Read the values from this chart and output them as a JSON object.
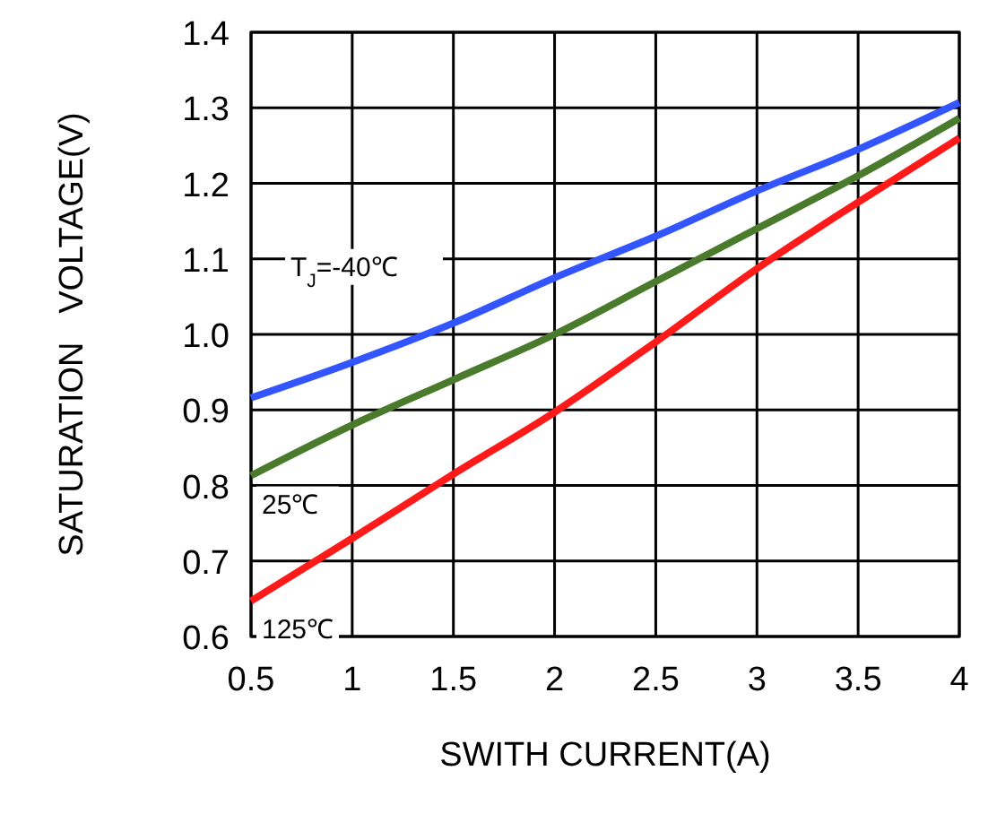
{
  "chart_data": {
    "type": "line",
    "xlabel": "SWITH CURRENT(A)",
    "ylabel": "SATURATION   VOLTAGE(V)",
    "x": [
      0.5,
      1,
      1.5,
      2,
      2.5,
      3,
      3.5,
      4
    ],
    "series": [
      {
        "name": "T$_{J}$=-40℃",
        "color": "#3355ff",
        "values": [
          0.916,
          0.963,
          1.015,
          1.075,
          1.13,
          1.19,
          1.245,
          1.307
        ]
      },
      {
        "name": "25℃",
        "color": "#4a7a2c",
        "values": [
          0.813,
          0.88,
          0.94,
          1.0,
          1.07,
          1.14,
          1.21,
          1.286
        ]
      },
      {
        "name": "125℃",
        "color": "#ff1a1a",
        "values": [
          0.647,
          0.73,
          0.815,
          0.897,
          0.99,
          1.087,
          1.175,
          1.26
        ]
      }
    ],
    "xlim": [
      0.5,
      4
    ],
    "ylim": [
      0.6,
      1.4
    ],
    "xticks": [
      0.5,
      1,
      1.5,
      2,
      2.5,
      3,
      3.5,
      4
    ],
    "yticks": [
      0.6,
      0.7,
      0.8,
      0.9,
      {
        "value": 1,
        "label": "1.0"
      },
      1.1,
      1.2,
      1.3,
      1.4
    ],
    "grid": true,
    "marker": "none",
    "line_style": "solid"
  }
}
